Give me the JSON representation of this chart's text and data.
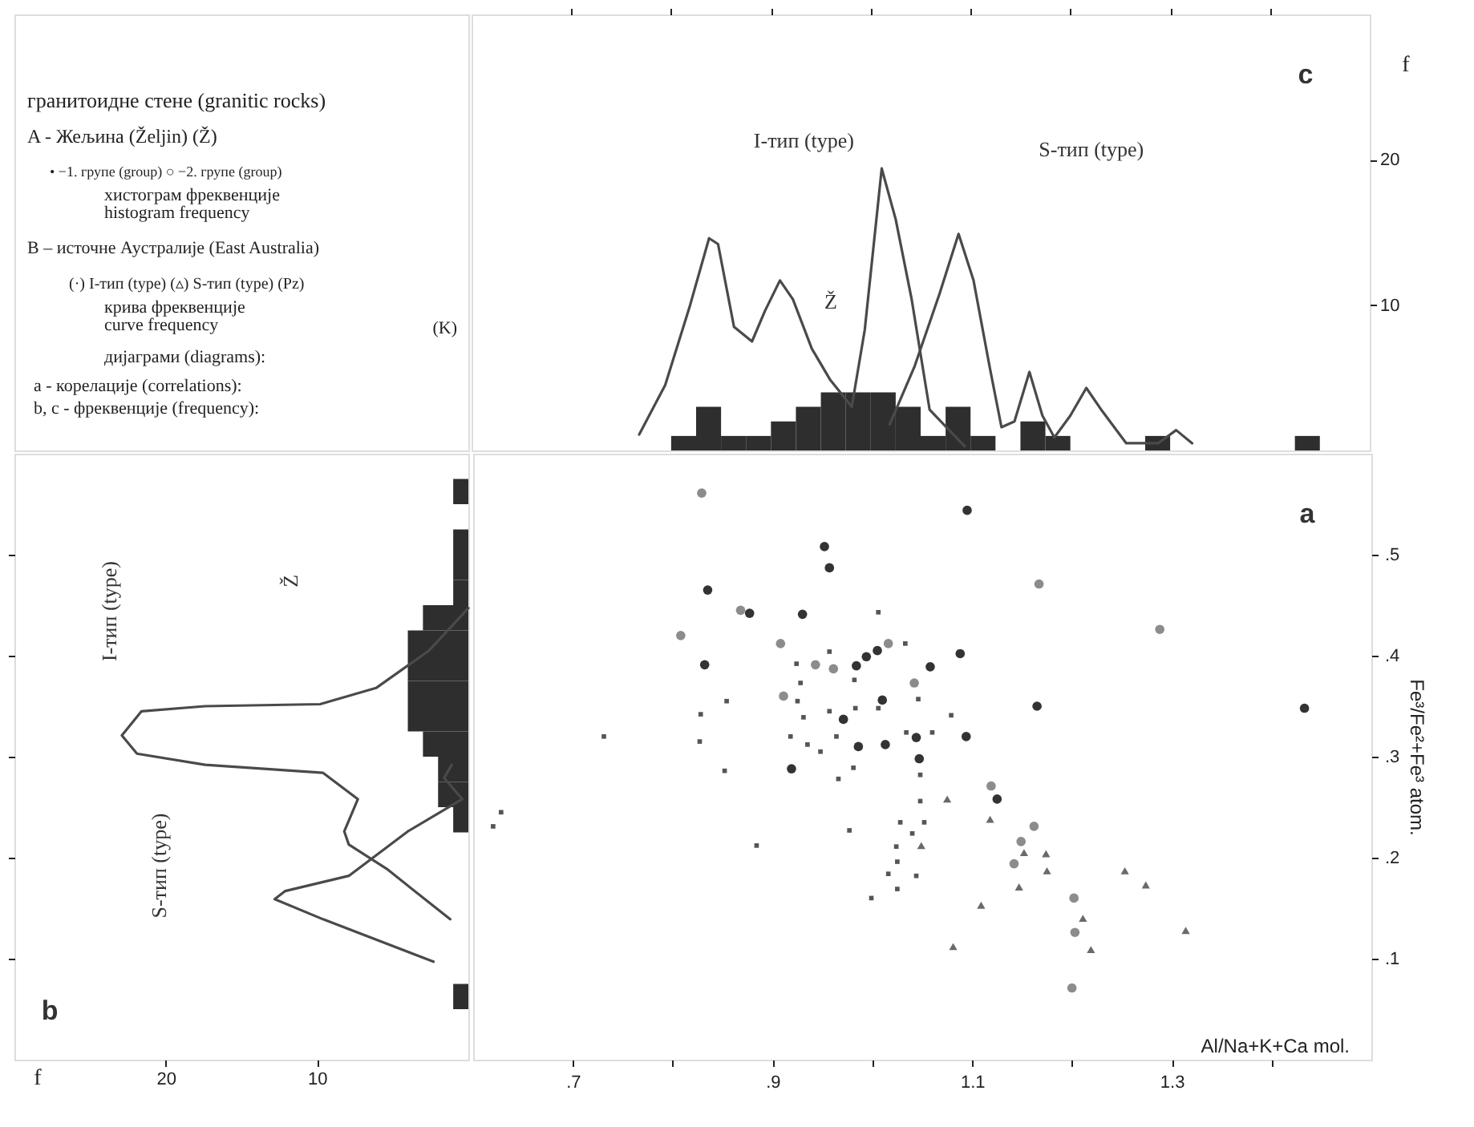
{
  "chart_data": [
    {
      "type": "other",
      "annotations": [
        "гранитоидне стене (granitic rocks)",
        "A - Жељина (Željin) (Ž)",
        "• −1. групе (group)   ○ −2. групе (group)",
        "хистограм фреквенције",
        "histogram frequency",
        "B – источне Аустралије (East Australia)",
        "(·) I-тип (type) (▵) S-тип (type) (Pz)",
        "крива фреквенције",
        "curve frequency",
        "(K)",
        "дијаграми (diagrams):",
        "a - корелације (correlations):",
        "b, c - фреквенције (frequency):"
      ]
    },
    {
      "type": "histogram",
      "bins": [
        0.8,
        0.825,
        0.85,
        0.875,
        0.9,
        0.925,
        0.95,
        0.975,
        1.0,
        1.025,
        1.05,
        1.075,
        1.1,
        1.125,
        1.15,
        1.175,
        1.2,
        1.225,
        1.25,
        1.275,
        1.3,
        1.325,
        1.35,
        1.375,
        1.4,
        1.425,
        1.45
      ],
      "values": [
        1,
        3,
        1,
        1,
        2,
        3,
        4,
        4,
        4,
        3,
        1,
        3,
        1,
        0,
        2,
        1,
        0,
        0,
        0,
        1,
        0,
        0,
        0,
        0,
        0,
        1
      ],
      "color": "#2e2e2e",
      "xlim": [
        0.6,
        1.5
      ],
      "xticks": [
        0.7,
        0.8,
        0.9,
        1.0,
        1.1,
        1.2,
        1.3,
        1.4
      ],
      "ylim": [
        0,
        30
      ],
      "yticks": [
        10,
        20
      ],
      "ylabel": "f",
      "tick_labels": "y",
      "series": [
        {
          "type": "line",
          "color": "#4a4a4a",
          "x": [
            0.768,
            0.794,
            0.819,
            0.838,
            0.847,
            0.863,
            0.881,
            0.894,
            0.909,
            0.922,
            0.941,
            0.959,
            0.981,
            0.994,
            1.011,
            1.025,
            1.041,
            1.059,
            1.094
          ],
          "values": [
            1.1,
            4.5,
            10.0,
            14.6,
            14.2,
            8.5,
            7.5,
            9.6,
            11.7,
            10.4,
            7.0,
            4.9,
            3.0,
            8.3,
            19.4,
            15.9,
            10.4,
            2.8,
            0.3
          ]
        },
        {
          "type": "line",
          "color": "#4a4a4a",
          "x": [
            1.019,
            1.044,
            1.069,
            1.088,
            1.103,
            1.119,
            1.131,
            1.144,
            1.159,
            1.172,
            1.184,
            1.2,
            1.216,
            1.231,
            1.256,
            1.288,
            1.306,
            1.322
          ],
          "values": [
            1.8,
            5.8,
            10.8,
            14.9,
            11.7,
            5.8,
            1.6,
            2.0,
            5.4,
            2.4,
            0.9,
            2.4,
            4.3,
            2.8,
            0.5,
            0.5,
            1.4,
            0.5
          ]
        }
      ],
      "annotations": [
        "c",
        "I-тип (type)",
        "S-тип (type)",
        "Ž"
      ]
    },
    {
      "type": "histogram",
      "orientation": "horizontal",
      "bins": [
        0.05,
        0.075,
        0.1,
        0.125,
        0.15,
        0.175,
        0.2,
        0.225,
        0.25,
        0.275,
        0.3,
        0.325,
        0.35,
        0.375,
        0.4,
        0.425,
        0.45,
        0.475,
        0.5,
        0.525,
        0.55,
        0.575
      ],
      "values": [
        1,
        0,
        0,
        0,
        0,
        0,
        0,
        1,
        2,
        2,
        3,
        4,
        4,
        4,
        4,
        3,
        1,
        1,
        1,
        0,
        1
      ],
      "color": "#2e2e2e",
      "xlim": [
        30,
        0
      ],
      "xticks": [
        10,
        20
      ],
      "xlabel": "f",
      "ylim": [
        0,
        0.6
      ],
      "yticks": [
        0.1,
        0.2,
        0.3,
        0.4,
        0.5
      ],
      "tick_labels": "x",
      "series": [
        {
          "type": "line",
          "color": "#4a4a4a",
          "x": [
            0.447,
            0.405,
            0.368,
            0.352,
            0.35,
            0.345,
            0.321,
            0.303,
            0.292,
            0.284,
            0.258,
            0.226,
            0.213,
            0.189,
            0.139
          ],
          "values": [
            0,
            2.6,
            6.1,
            9.8,
            17.4,
            21.6,
            22.9,
            21.9,
            17.4,
            9.6,
            7.3,
            8.2,
            7.9,
            5.4,
            1.2
          ]
        },
        {
          "type": "line",
          "color": "#4a4a4a",
          "x": [
            0.292,
            0.279,
            0.258,
            0.226,
            0.182,
            0.167,
            0.159,
            0.139,
            0.097
          ],
          "values": [
            1.1,
            1.6,
            0.4,
            4.0,
            7.9,
            12.1,
            12.8,
            9.6,
            2.3
          ]
        }
      ],
      "annotations": [
        "b",
        "I-тип (type)",
        "S-тип (type)",
        "Ž"
      ]
    },
    {
      "type": "scatter",
      "xlim": [
        0.6,
        1.5
      ],
      "ylim": [
        0,
        0.6
      ],
      "xlabel": "Al/Na+K+Ca mol.",
      "ylabel": "Fe³/Fe²+Fe³ atom.",
      "xticks": [
        {
          "value": 0.7,
          "label": ".7"
        },
        {
          "value": 0.8,
          "label": null
        },
        {
          "value": 0.9,
          "label": ".9"
        },
        {
          "value": 1.0,
          "label": null
        },
        1.1,
        {
          "value": 1.2,
          "label": null
        },
        1.3,
        {
          "value": 1.4,
          "label": null
        }
      ],
      "yticks": [
        {
          "value": 0.1,
          "label": ".1"
        },
        {
          "value": 0.2,
          "label": ".2"
        },
        {
          "value": 0.3,
          "label": ".3"
        },
        {
          "value": 0.4,
          "label": ".4"
        },
        {
          "value": 0.5,
          "label": ".5"
        }
      ],
      "series": [
        {
          "color": "#333333",
          "marker": "circle",
          "x": [
            0.835,
            0.877,
            0.832,
            0.984,
            0.994,
            1.005,
            1.058,
            1.088,
            1.01,
            0.971,
            1.044,
            0.986,
            1.013,
            1.047,
            1.094,
            0.919,
            1.165,
            1.433,
            1.125,
            1.095,
            0.952,
            0.957,
            0.93
          ],
          "values": [
            0.465,
            0.442,
            0.391,
            0.39,
            0.399,
            0.405,
            0.389,
            0.402,
            0.356,
            0.337,
            0.319,
            0.31,
            0.312,
            0.298,
            0.32,
            0.288,
            0.35,
            0.348,
            0.258,
            0.544,
            0.508,
            0.487,
            0.441
          ]
        },
        {
          "color": "#8c8c8c",
          "marker": "circle",
          "x": [
            0.829,
            0.868,
            0.808,
            0.908,
            0.943,
            0.961,
            1.016,
            0.911,
            1.042,
            1.167,
            1.288,
            1.119,
            1.162,
            1.149,
            1.142,
            1.202,
            1.203,
            1.2
          ],
          "values": [
            0.561,
            0.445,
            0.42,
            0.412,
            0.391,
            0.387,
            0.412,
            0.36,
            0.373,
            0.471,
            0.426,
            0.271,
            0.231,
            0.216,
            0.194,
            0.16,
            0.126,
            0.071
          ]
        },
        {
          "color": "#555555",
          "marker": "square",
          "x": [
            0.731,
            0.628,
            0.62,
            0.828,
            0.827,
            0.854,
            0.852,
            0.884,
            0.924,
            0.928,
            0.925,
            0.931,
            0.918,
            0.935,
            0.948,
            0.957,
            0.957,
            0.964,
            0.966,
            0.982,
            0.983,
            0.981,
            1.006,
            1.006,
            1.033,
            1.046,
            1.034,
            1.06,
            1.048,
            1.048,
            0.977,
            1.028,
            1.04,
            1.052,
            1.024,
            1.025,
            1.016,
            1.025,
            1.044,
            0.999,
            1.079
          ],
          "values": [
            0.32,
            0.245,
            0.231,
            0.342,
            0.315,
            0.355,
            0.286,
            0.212,
            0.392,
            0.373,
            0.355,
            0.339,
            0.32,
            0.312,
            0.305,
            0.404,
            0.345,
            0.32,
            0.278,
            0.376,
            0.348,
            0.289,
            0.443,
            0.348,
            0.412,
            0.357,
            0.324,
            0.324,
            0.282,
            0.256,
            0.227,
            0.235,
            0.224,
            0.235,
            0.211,
            0.196,
            0.184,
            0.169,
            0.182,
            0.16,
            0.341
          ]
        },
        {
          "color": "#6a6a6a",
          "marker": "triangle",
          "x": [
            1.075,
            1.118,
            1.049,
            1.152,
            1.174,
            1.175,
            1.147,
            1.109,
            1.253,
            1.274,
            1.211,
            1.219,
            1.314,
            1.081
          ],
          "values": [
            0.258,
            0.238,
            0.212,
            0.205,
            0.204,
            0.187,
            0.171,
            0.153,
            0.187,
            0.173,
            0.14,
            0.109,
            0.128,
            0.112
          ]
        }
      ],
      "annotations": [
        "a"
      ]
    }
  ]
}
